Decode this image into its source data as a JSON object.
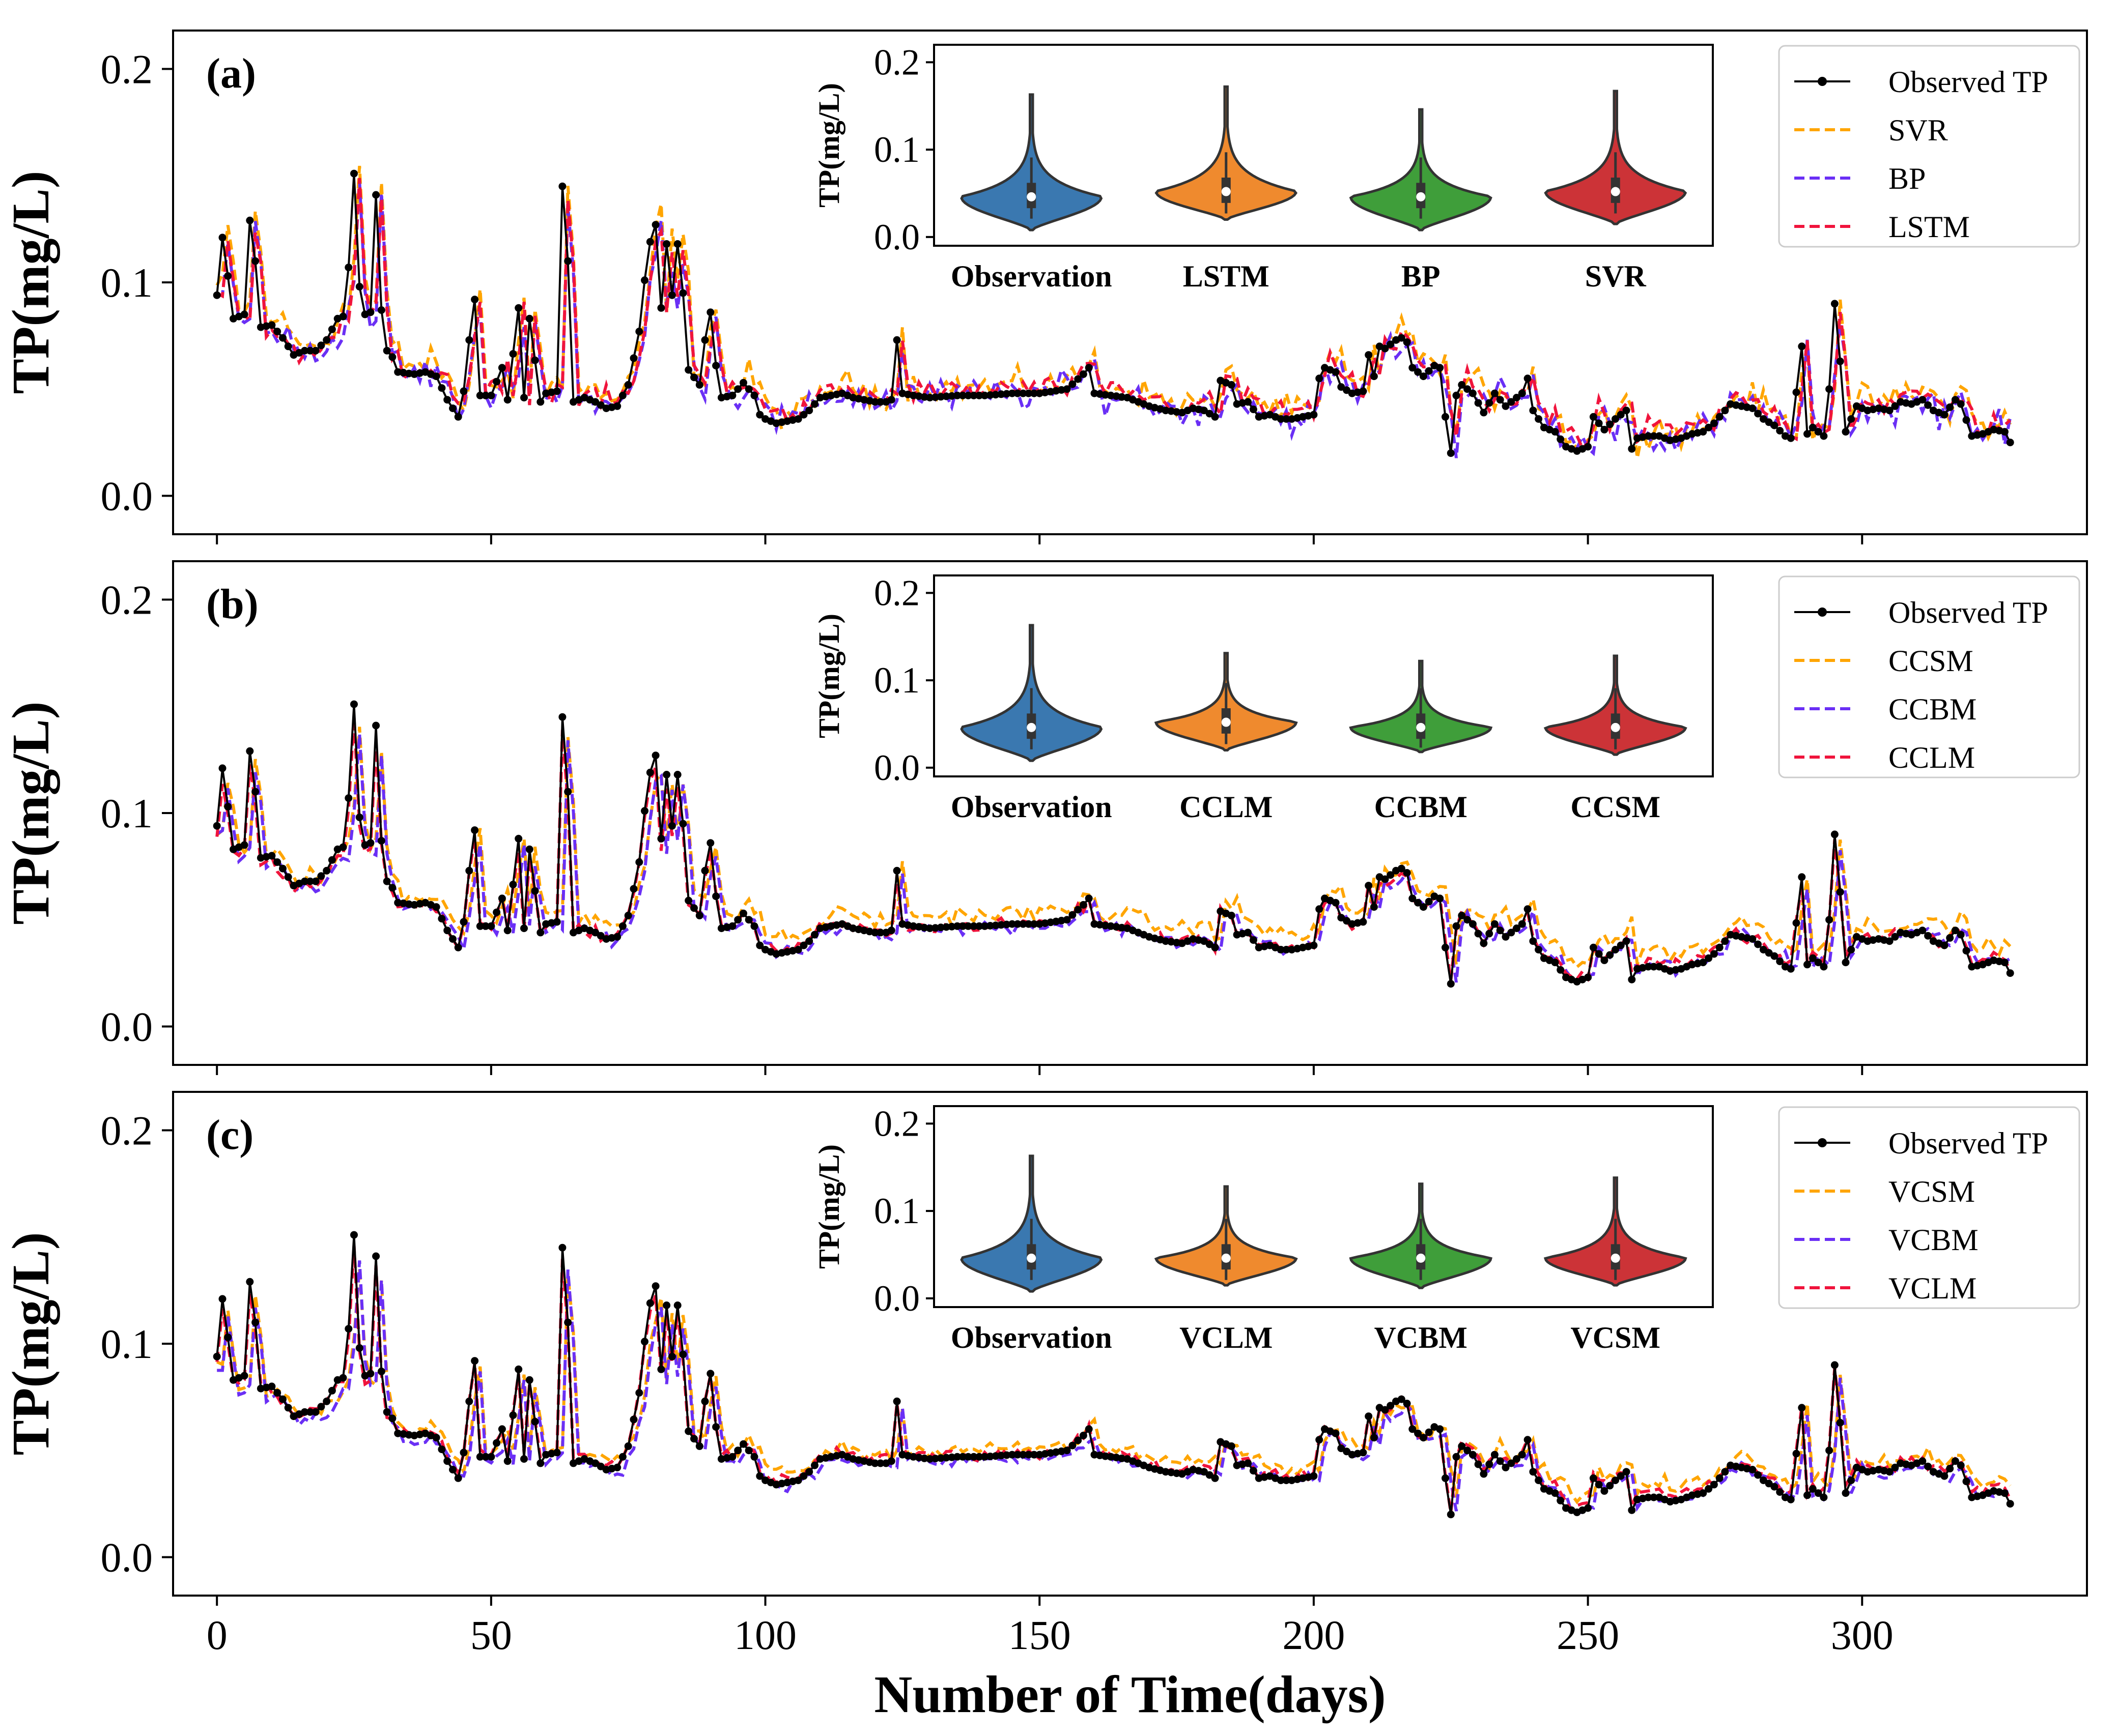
{
  "figure": {
    "xlabel": "Number of Time(days)",
    "ylabel": "TP(mg/L)",
    "xlim": [
      -8,
      341
    ],
    "ylim": [
      -0.018,
      0.218
    ],
    "x_ticks": [
      0,
      50,
      100,
      150,
      200,
      250,
      300
    ],
    "y_ticks": [
      "0.0",
      "0.1",
      "0.2"
    ],
    "y_tick_values": [
      0.0,
      0.1,
      0.2
    ]
  },
  "colors": {
    "observed": "#000000",
    "orange": "#ffa500",
    "purple": "#6a2ff5",
    "red": "#f0143c",
    "violin_blue": "#3a78b0",
    "violin_orange": "#ef8a2e",
    "violin_green": "#3f9e3a",
    "violin_red": "#cc3337"
  },
  "chart_data": [
    {
      "type": "line",
      "panel": "(a)",
      "title": "",
      "xlabel": "",
      "ylabel": "TP(mg/L)",
      "legend": [
        "Observed TP",
        "SVR",
        "BP",
        "LSTM"
      ],
      "series_styles": [
        "observed",
        "orange",
        "purple",
        "red"
      ],
      "inset": {
        "type": "violin",
        "ylabel": "TP(mg/L)",
        "y_ticks": [
          "0.0",
          "0.1",
          "0.2"
        ],
        "categories": [
          "Observation",
          "LSTM",
          "BP",
          "SVR"
        ],
        "colors": [
          "violin_blue",
          "violin_orange",
          "violin_green",
          "violin_red"
        ],
        "max": [
          0.163,
          0.172,
          0.146,
          0.167
        ],
        "min": [
          0.008,
          0.02,
          0.008,
          0.015
        ],
        "median": [
          0.046,
          0.052,
          0.046,
          0.052
        ]
      }
    },
    {
      "type": "line",
      "panel": "(b)",
      "title": "",
      "xlabel": "",
      "ylabel": "TP(mg/L)",
      "legend": [
        "Observed TP",
        "CCSM",
        "CCBM",
        "CCLM"
      ],
      "series_styles": [
        "observed",
        "orange",
        "purple",
        "red"
      ],
      "inset": {
        "type": "violin",
        "ylabel": "TP(mg/L)",
        "y_ticks": [
          "0.0",
          "0.1",
          "0.2"
        ],
        "categories": [
          "Observation",
          "CCLM",
          "CCBM",
          "CCSM"
        ],
        "colors": [
          "violin_blue",
          "violin_orange",
          "violin_green",
          "violin_red"
        ],
        "max": [
          0.163,
          0.131,
          0.122,
          0.128
        ],
        "min": [
          0.008,
          0.02,
          0.018,
          0.015
        ],
        "median": [
          0.046,
          0.052,
          0.046,
          0.046
        ]
      }
    },
    {
      "type": "line",
      "panel": "(c)",
      "title": "",
      "xlabel": "Number of Time(days)",
      "ylabel": "TP(mg/L)",
      "legend": [
        "Observed TP",
        "VCSM",
        "VCBM",
        "VCLM"
      ],
      "series_styles": [
        "observed",
        "orange",
        "purple",
        "red"
      ],
      "inset": {
        "type": "violin",
        "ylabel": "TP(mg/L)",
        "y_ticks": [
          "0.0",
          "0.1",
          "0.2"
        ],
        "categories": [
          "Observation",
          "VCLM",
          "VCBM",
          "VCSM"
        ],
        "colors": [
          "violin_blue",
          "violin_orange",
          "violin_green",
          "violin_red"
        ],
        "max": [
          0.163,
          0.128,
          0.131,
          0.138
        ],
        "min": [
          0.008,
          0.015,
          0.012,
          0.015
        ],
        "median": [
          0.046,
          0.046,
          0.046,
          0.046
        ]
      }
    }
  ],
  "observed_anchors": [
    [
      0,
      0.094
    ],
    [
      1,
      0.121
    ],
    [
      2,
      0.103
    ],
    [
      3,
      0.083
    ],
    [
      5,
      0.085
    ],
    [
      6,
      0.129
    ],
    [
      7,
      0.11
    ],
    [
      8,
      0.079
    ],
    [
      10,
      0.08
    ],
    [
      12,
      0.074
    ],
    [
      14,
      0.066
    ],
    [
      16,
      0.068
    ],
    [
      18,
      0.068
    ],
    [
      20,
      0.073
    ],
    [
      22,
      0.083
    ],
    [
      23,
      0.084
    ],
    [
      24,
      0.107
    ],
    [
      25,
      0.151
    ],
    [
      26,
      0.098
    ],
    [
      27,
      0.085
    ],
    [
      28,
      0.086
    ],
    [
      29,
      0.141
    ],
    [
      30,
      0.087
    ],
    [
      31,
      0.068
    ],
    [
      32,
      0.065
    ],
    [
      33,
      0.058
    ],
    [
      36,
      0.057
    ],
    [
      38,
      0.058
    ],
    [
      40,
      0.056
    ],
    [
      42,
      0.045
    ],
    [
      44,
      0.037
    ],
    [
      45,
      0.049
    ],
    [
      46,
      0.073
    ],
    [
      47,
      0.092
    ],
    [
      48,
      0.047
    ],
    [
      50,
      0.047
    ],
    [
      52,
      0.06
    ],
    [
      53,
      0.045
    ],
    [
      55,
      0.088
    ],
    [
      56,
      0.046
    ],
    [
      57,
      0.083
    ],
    [
      59,
      0.044
    ],
    [
      60,
      0.048
    ],
    [
      62,
      0.049
    ],
    [
      63,
      0.145
    ],
    [
      64,
      0.11
    ],
    [
      65,
      0.044
    ],
    [
      67,
      0.046
    ],
    [
      69,
      0.044
    ],
    [
      71,
      0.041
    ],
    [
      73,
      0.042
    ],
    [
      75,
      0.052
    ],
    [
      77,
      0.077
    ],
    [
      78,
      0.101
    ],
    [
      79,
      0.119
    ],
    [
      80,
      0.127
    ],
    [
      81,
      0.088
    ],
    [
      82,
      0.118
    ],
    [
      83,
      0.094
    ],
    [
      84,
      0.118
    ],
    [
      85,
      0.095
    ],
    [
      86,
      0.059
    ],
    [
      88,
      0.052
    ],
    [
      89,
      0.073
    ],
    [
      90,
      0.086
    ],
    [
      91,
      0.061
    ],
    [
      92,
      0.046
    ],
    [
      94,
      0.047
    ],
    [
      96,
      0.053
    ],
    [
      98,
      0.047
    ],
    [
      99,
      0.038
    ],
    [
      100,
      0.036
    ],
    [
      102,
      0.034
    ],
    [
      104,
      0.035
    ],
    [
      106,
      0.036
    ],
    [
      108,
      0.04
    ],
    [
      110,
      0.046
    ],
    [
      112,
      0.047
    ],
    [
      114,
      0.048
    ],
    [
      116,
      0.046
    ],
    [
      118,
      0.045
    ],
    [
      120,
      0.044
    ],
    [
      122,
      0.044
    ],
    [
      123,
      0.045
    ],
    [
      124,
      0.073
    ],
    [
      125,
      0.048
    ],
    [
      127,
      0.047
    ],
    [
      130,
      0.046
    ],
    [
      135,
      0.047
    ],
    [
      140,
      0.047
    ],
    [
      145,
      0.048
    ],
    [
      150,
      0.048
    ],
    [
      155,
      0.05
    ],
    [
      158,
      0.057
    ],
    [
      159,
      0.06
    ],
    [
      160,
      0.048
    ],
    [
      163,
      0.047
    ],
    [
      166,
      0.046
    ],
    [
      168,
      0.044
    ],
    [
      170,
      0.042
    ],
    [
      173,
      0.04
    ],
    [
      176,
      0.039
    ],
    [
      178,
      0.041
    ],
    [
      180,
      0.04
    ],
    [
      182,
      0.037
    ],
    [
      183,
      0.054
    ],
    [
      185,
      0.052
    ],
    [
      186,
      0.043
    ],
    [
      188,
      0.044
    ],
    [
      190,
      0.037
    ],
    [
      192,
      0.038
    ],
    [
      194,
      0.036
    ],
    [
      196,
      0.036
    ],
    [
      198,
      0.037
    ],
    [
      200,
      0.038
    ],
    [
      201,
      0.055
    ],
    [
      202,
      0.06
    ],
    [
      204,
      0.058
    ],
    [
      205,
      0.051
    ],
    [
      207,
      0.048
    ],
    [
      209,
      0.049
    ],
    [
      210,
      0.066
    ],
    [
      211,
      0.056
    ],
    [
      212,
      0.07
    ],
    [
      213,
      0.069
    ],
    [
      215,
      0.073
    ],
    [
      216,
      0.074
    ],
    [
      217,
      0.072
    ],
    [
      218,
      0.06
    ],
    [
      220,
      0.056
    ],
    [
      222,
      0.061
    ],
    [
      223,
      0.06
    ],
    [
      224,
      0.037
    ],
    [
      225,
      0.02
    ],
    [
      226,
      0.047
    ],
    [
      227,
      0.052
    ],
    [
      229,
      0.048
    ],
    [
      231,
      0.039
    ],
    [
      233,
      0.048
    ],
    [
      235,
      0.042
    ],
    [
      236,
      0.044
    ],
    [
      238,
      0.048
    ],
    [
      239,
      0.055
    ],
    [
      240,
      0.04
    ],
    [
      242,
      0.032
    ],
    [
      244,
      0.03
    ],
    [
      246,
      0.023
    ],
    [
      248,
      0.021
    ],
    [
      250,
      0.023
    ],
    [
      251,
      0.037
    ],
    [
      253,
      0.031
    ],
    [
      255,
      0.036
    ],
    [
      257,
      0.04
    ],
    [
      258,
      0.022
    ],
    [
      259,
      0.027
    ],
    [
      261,
      0.028
    ],
    [
      263,
      0.028
    ],
    [
      265,
      0.026
    ],
    [
      267,
      0.027
    ],
    [
      269,
      0.029
    ],
    [
      271,
      0.03
    ],
    [
      273,
      0.034
    ],
    [
      275,
      0.04
    ],
    [
      276,
      0.043
    ],
    [
      278,
      0.042
    ],
    [
      280,
      0.041
    ],
    [
      282,
      0.036
    ],
    [
      284,
      0.033
    ],
    [
      286,
      0.028
    ],
    [
      287,
      0.027
    ],
    [
      289,
      0.07
    ],
    [
      290,
      0.029
    ],
    [
      291,
      0.032
    ],
    [
      293,
      0.028
    ],
    [
      294,
      0.05
    ],
    [
      295,
      0.09
    ],
    [
      296,
      0.063
    ],
    [
      297,
      0.03
    ],
    [
      299,
      0.042
    ],
    [
      301,
      0.04
    ],
    [
      303,
      0.041
    ],
    [
      305,
      0.04
    ],
    [
      307,
      0.044
    ],
    [
      309,
      0.043
    ],
    [
      311,
      0.045
    ],
    [
      313,
      0.04
    ],
    [
      315,
      0.038
    ],
    [
      317,
      0.045
    ],
    [
      318,
      0.043
    ],
    [
      320,
      0.028
    ],
    [
      322,
      0.029
    ],
    [
      324,
      0.031
    ],
    [
      326,
      0.03
    ],
    [
      327,
      0.025
    ]
  ]
}
